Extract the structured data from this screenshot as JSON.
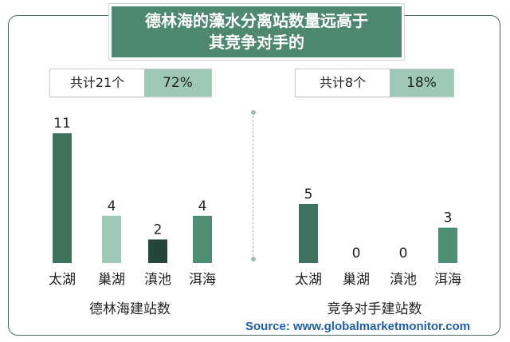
{
  "title_lines": [
    "德林海的藻水分离站数量远高于",
    "其竞争对手的"
  ],
  "summary_left": {
    "label": "共计21个",
    "percent": "72%"
  },
  "summary_right": {
    "label": "共计8个",
    "percent": "18%"
  },
  "source": "Source: www.globalmarketmonitor.com",
  "colors": {
    "dark_green": "#3f735e",
    "light_green": "#9ec9b6",
    "darkest_green": "#26463a",
    "mid_green": "#4e8f74",
    "frame": "#3e6b5d"
  },
  "chart_data": [
    {
      "type": "bar",
      "xlabel": "德林海建站数",
      "categories": [
        "太湖",
        "巢湖",
        "滇池",
        "洱海"
      ],
      "values": [
        11,
        4,
        2,
        4
      ],
      "bar_colors": [
        "#3f735e",
        "#9ec9b6",
        "#26463a",
        "#4e8f74"
      ],
      "value_labels": [
        "11",
        "4",
        "2",
        "4"
      ]
    },
    {
      "type": "bar",
      "xlabel": "竞争对手建站数",
      "categories": [
        "太湖",
        "巢湖",
        "滇池",
        "洱海"
      ],
      "values": [
        5,
        0,
        0,
        3
      ],
      "bar_colors": [
        "#3f735e",
        "#9ec9b6",
        "#26463a",
        "#4e8f74"
      ],
      "value_labels": [
        "5",
        "0",
        "0",
        "3"
      ]
    }
  ]
}
